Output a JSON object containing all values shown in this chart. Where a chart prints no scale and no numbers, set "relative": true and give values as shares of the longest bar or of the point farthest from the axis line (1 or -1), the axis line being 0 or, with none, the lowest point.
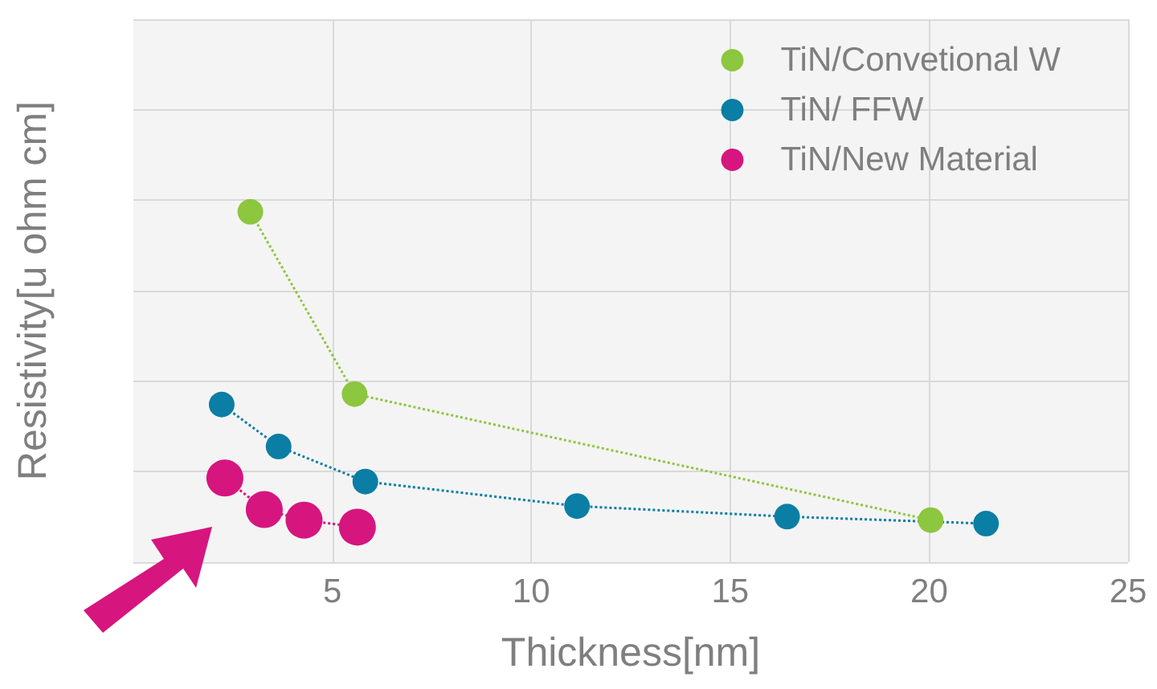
{
  "chart_data": {
    "type": "line",
    "relative": true,
    "xlabel": "Thickness[nm]",
    "ylabel": "Resistivity[u ohm cm]",
    "xlim": [
      0,
      25
    ],
    "xticks": [
      5,
      10,
      15,
      20,
      25
    ],
    "grid": true,
    "legend": "top right",
    "marker": "circle",
    "line_style": "dotted",
    "series": [
      {
        "name": "TiN/Convetional W",
        "color": "#8dc63f",
        "x": [
          2.94,
          5.56,
          20.04
        ],
        "values": [
          1,
          0.48,
          0.12
        ]
      },
      {
        "name": "TiN/ FFW",
        "color": "#0a7ea4",
        "x": [
          2.22,
          3.65,
          5.83,
          11.15,
          16.43,
          21.43
        ],
        "values": [
          0.45,
          0.33,
          0.23,
          0.16,
          0.13,
          0.11
        ]
      },
      {
        "name": "TiN/New Material",
        "color": "#d6157f",
        "x": [
          2.3,
          3.29,
          4.29,
          5.63
        ],
        "values": [
          0.24,
          0.15,
          0.12,
          0.1
        ]
      }
    ]
  }
}
